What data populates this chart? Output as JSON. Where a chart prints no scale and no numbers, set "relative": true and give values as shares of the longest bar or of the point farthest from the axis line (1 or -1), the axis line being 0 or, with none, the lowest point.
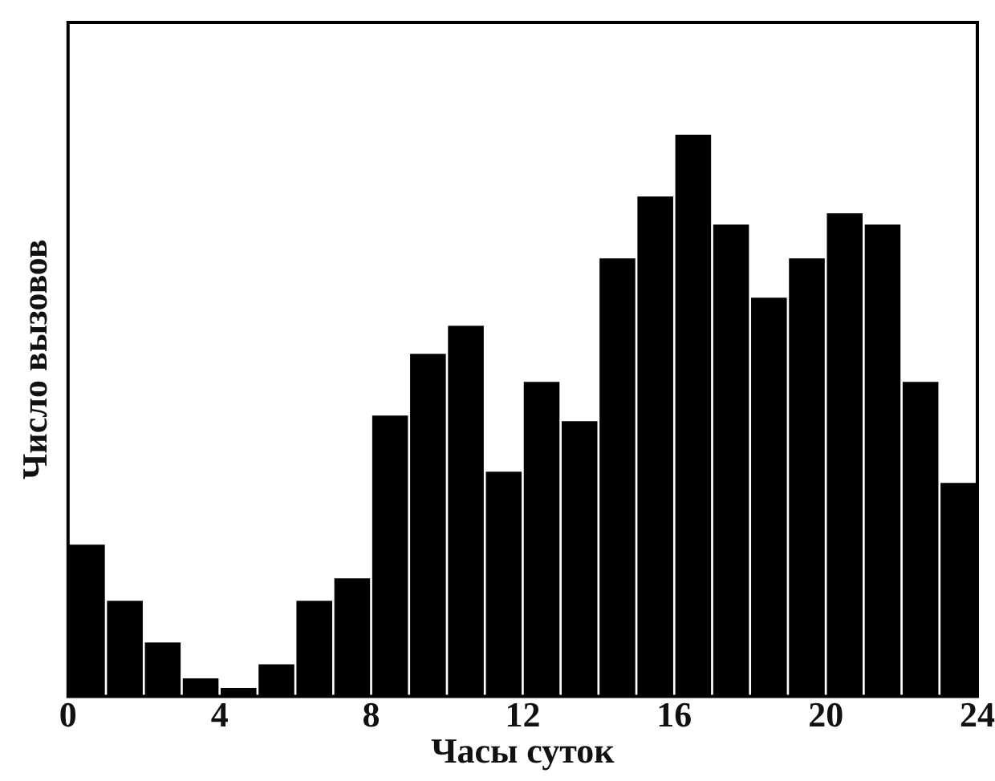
{
  "chart_data": {
    "type": "bar",
    "xlabel": "Часы суток",
    "ylabel": "Число вызовов",
    "relative": true,
    "x": [
      0.5,
      1.5,
      2.5,
      3.5,
      4.5,
      5.5,
      6.5,
      7.5,
      8.5,
      9.5,
      10.5,
      11.5,
      12.5,
      13.5,
      14.5,
      15.5,
      16.5,
      17.5,
      18.5,
      19.5,
      20.5,
      21.5,
      22.5,
      23.5
    ],
    "values": [
      0.27,
      0.17,
      0.096,
      0.032,
      0.015,
      0.057,
      0.17,
      0.21,
      0.5,
      0.61,
      0.66,
      0.4,
      0.56,
      0.49,
      0.78,
      0.89,
      1,
      0.84,
      0.71,
      0.78,
      0.86,
      0.84,
      0.56,
      0.38
    ],
    "color": "#000000",
    "xlim": [
      0,
      24
    ],
    "xticks": [
      0,
      4,
      8,
      12,
      16,
      20,
      24
    ],
    "grid": false,
    "legend": false
  }
}
